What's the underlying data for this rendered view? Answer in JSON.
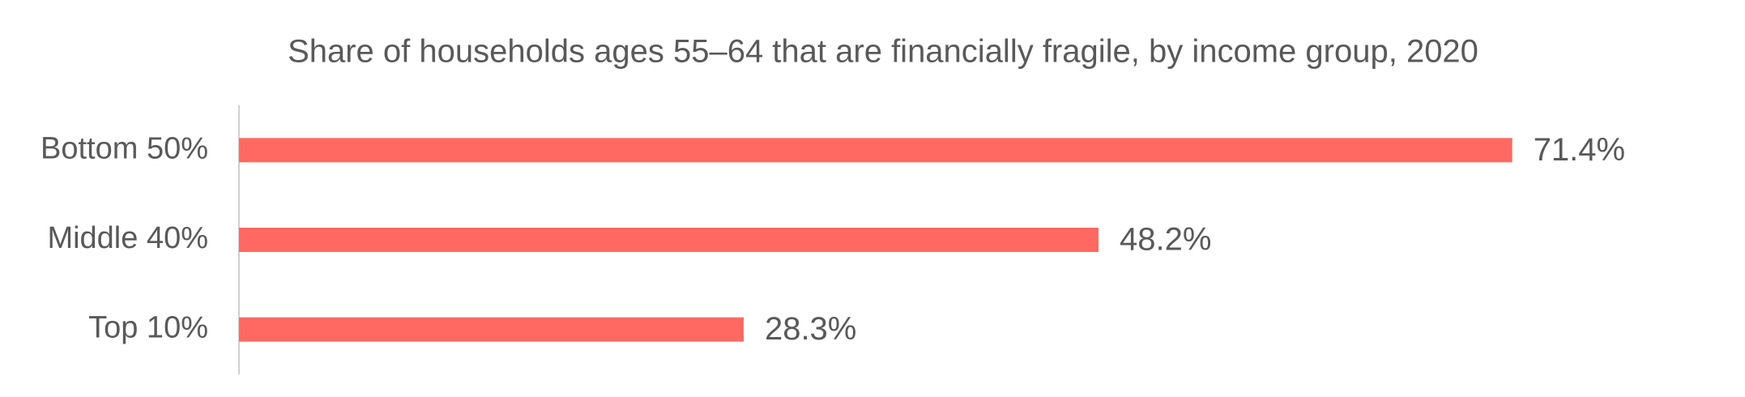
{
  "chart_data": {
    "type": "bar",
    "orientation": "horizontal",
    "title": "Share of households ages 55–64 that are financially fragile, by income group, 2020",
    "categories": [
      "Bottom 50%",
      "Middle 40%",
      "Top 10%"
    ],
    "values": [
      71.4,
      48.2,
      28.3
    ],
    "value_labels": [
      "71.4%",
      "48.2%",
      "28.3%"
    ],
    "color": "#ff6961",
    "xlim": [
      0,
      80
    ]
  }
}
